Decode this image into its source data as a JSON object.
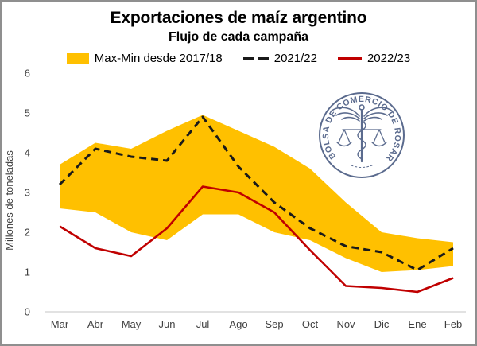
{
  "frame": {
    "border_color": "#8f8f8f",
    "background": "#ffffff"
  },
  "header": {
    "title": "Exportaciones de maíz argentino",
    "subtitle": "Flujo de cada campaña"
  },
  "legend": [
    {
      "label": "Max-Min desde 2017/18",
      "type": "band",
      "color": "#FFC000"
    },
    {
      "label": "2021/22",
      "type": "dashed-line",
      "color": "#1a1a1a"
    },
    {
      "label": "2022/23",
      "type": "solid-line",
      "color": "#C00000"
    }
  ],
  "watermark": {
    "text": "BOLSA DE COMERCIO DE ROSARIO",
    "color": "#5b6b8e"
  },
  "chart_data": {
    "type": "line",
    "title": "Exportaciones de maíz argentino",
    "subtitle": "Flujo de cada campaña",
    "xlabel": "",
    "ylabel": "Millones de toneladas",
    "ylim": [
      0,
      6
    ],
    "yticks": [
      0,
      1,
      2,
      3,
      4,
      5,
      6
    ],
    "grid": false,
    "legend_position": "top",
    "categories": [
      "Mar",
      "Abr",
      "May",
      "Jun",
      "Jul",
      "Ago",
      "Sep",
      "Oct",
      "Nov",
      "Dic",
      "Ene",
      "Feb"
    ],
    "band": {
      "name": "Max-Min desde 2017/18",
      "color": "#FFC000",
      "max": [
        3.7,
        4.25,
        4.1,
        4.55,
        4.95,
        4.55,
        4.15,
        3.6,
        2.75,
        2.0,
        1.85,
        1.75
      ],
      "min": [
        2.6,
        2.5,
        2.0,
        1.8,
        2.45,
        2.45,
        2.0,
        1.8,
        1.35,
        1.0,
        1.05,
        1.15
      ]
    },
    "series": [
      {
        "name": "2021/22",
        "style": "dashed",
        "color": "#1a1a1a",
        "values": [
          3.2,
          4.1,
          3.9,
          3.8,
          4.9,
          3.65,
          2.75,
          2.1,
          1.65,
          1.5,
          1.05,
          1.6
        ]
      },
      {
        "name": "2022/23",
        "style": "solid",
        "color": "#C00000",
        "values": [
          2.15,
          1.6,
          1.4,
          2.1,
          3.15,
          3.0,
          2.5,
          1.55,
          0.65,
          0.6,
          0.5,
          0.85
        ]
      }
    ]
  }
}
